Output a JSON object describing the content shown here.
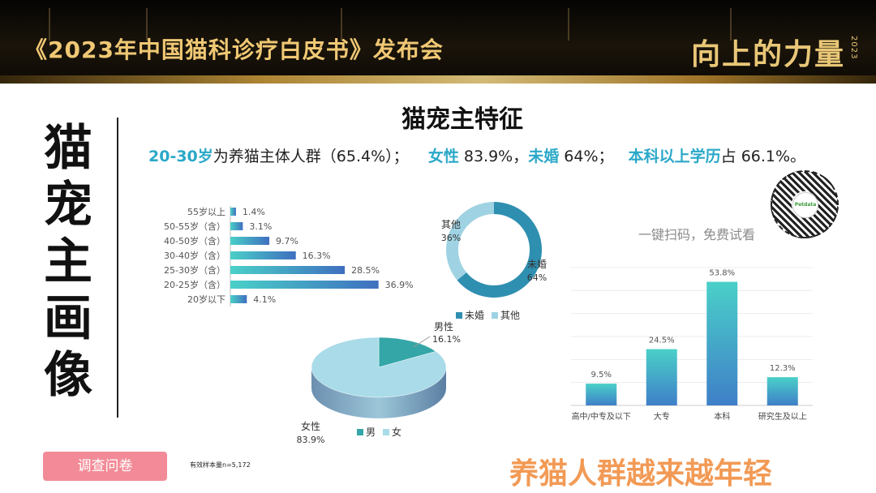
{
  "header": {
    "event_title": "《2023年中国猫科诊疗白皮书》发布会",
    "logo_text": "向上的力量",
    "logo_year": "2023"
  },
  "slide": {
    "vertical_title": "猫宠主画像",
    "title": "猫宠主特征",
    "summary": {
      "p1_hl": "20-30岁",
      "p1": "为养猫主体人群（65.4%）；",
      "p2_hl": "女性",
      "p2": " 83.9%，",
      "p3_hl": "未婚",
      "p3": " 64%；",
      "p4_hl": "本科以上学历",
      "p4": "占 66.1%。"
    },
    "qr": {
      "brand": "Petdata",
      "hint": "一键扫码，免费试看"
    },
    "survey_button": "调查问卷",
    "sample_note": "有效样本量n=5,172",
    "slogan": "养猫人群越来越年轻"
  },
  "colors": {
    "accent": "#2aa8c8",
    "bar_start": "#4ad0c8",
    "bar_end": "#3f6fbf",
    "slogan": "#f29a55",
    "button": "#f28b97"
  },
  "chart_data": [
    {
      "type": "bar",
      "orientation": "horizontal",
      "categories": [
        "55岁以上",
        "50-55岁（含）",
        "40-50岁（含）",
        "30-40岁（含）",
        "25-30岁（含）",
        "20-25岁（含）",
        "20岁以下"
      ],
      "values": [
        1.4,
        3.1,
        9.7,
        16.3,
        28.5,
        36.9,
        4.1
      ],
      "labels": [
        "1.4%",
        "3.1%",
        "9.7%",
        "16.3%",
        "28.5%",
        "36.9%",
        "4.1%"
      ],
      "xlim": [
        0,
        40
      ]
    },
    {
      "type": "pie",
      "style": "donut",
      "categories": [
        "未婚",
        "其他"
      ],
      "values": [
        64,
        36
      ],
      "labels": [
        "64%",
        "36%"
      ],
      "colors": [
        "#2f8fb0",
        "#9fd3e3"
      ],
      "legend": [
        "未婚",
        "其他"
      ],
      "legend_position": "bottom"
    },
    {
      "type": "pie",
      "style": "3d",
      "categories": [
        "男性",
        "女性"
      ],
      "values": [
        16.1,
        83.9
      ],
      "labels": [
        "16.1%",
        "83.9%"
      ],
      "colors": [
        "#35a6a8",
        "#a9dbe8"
      ],
      "legend": [
        "男",
        "女"
      ],
      "legend_position": "bottom"
    },
    {
      "type": "bar",
      "orientation": "vertical",
      "categories": [
        "高中/中专及以下",
        "大专",
        "本科",
        "研究生及以上"
      ],
      "values": [
        9.5,
        24.5,
        53.8,
        12.3
      ],
      "labels": [
        "9.5%",
        "24.5%",
        "53.8%",
        "12.3%"
      ],
      "ylim": [
        0,
        60
      ]
    }
  ]
}
